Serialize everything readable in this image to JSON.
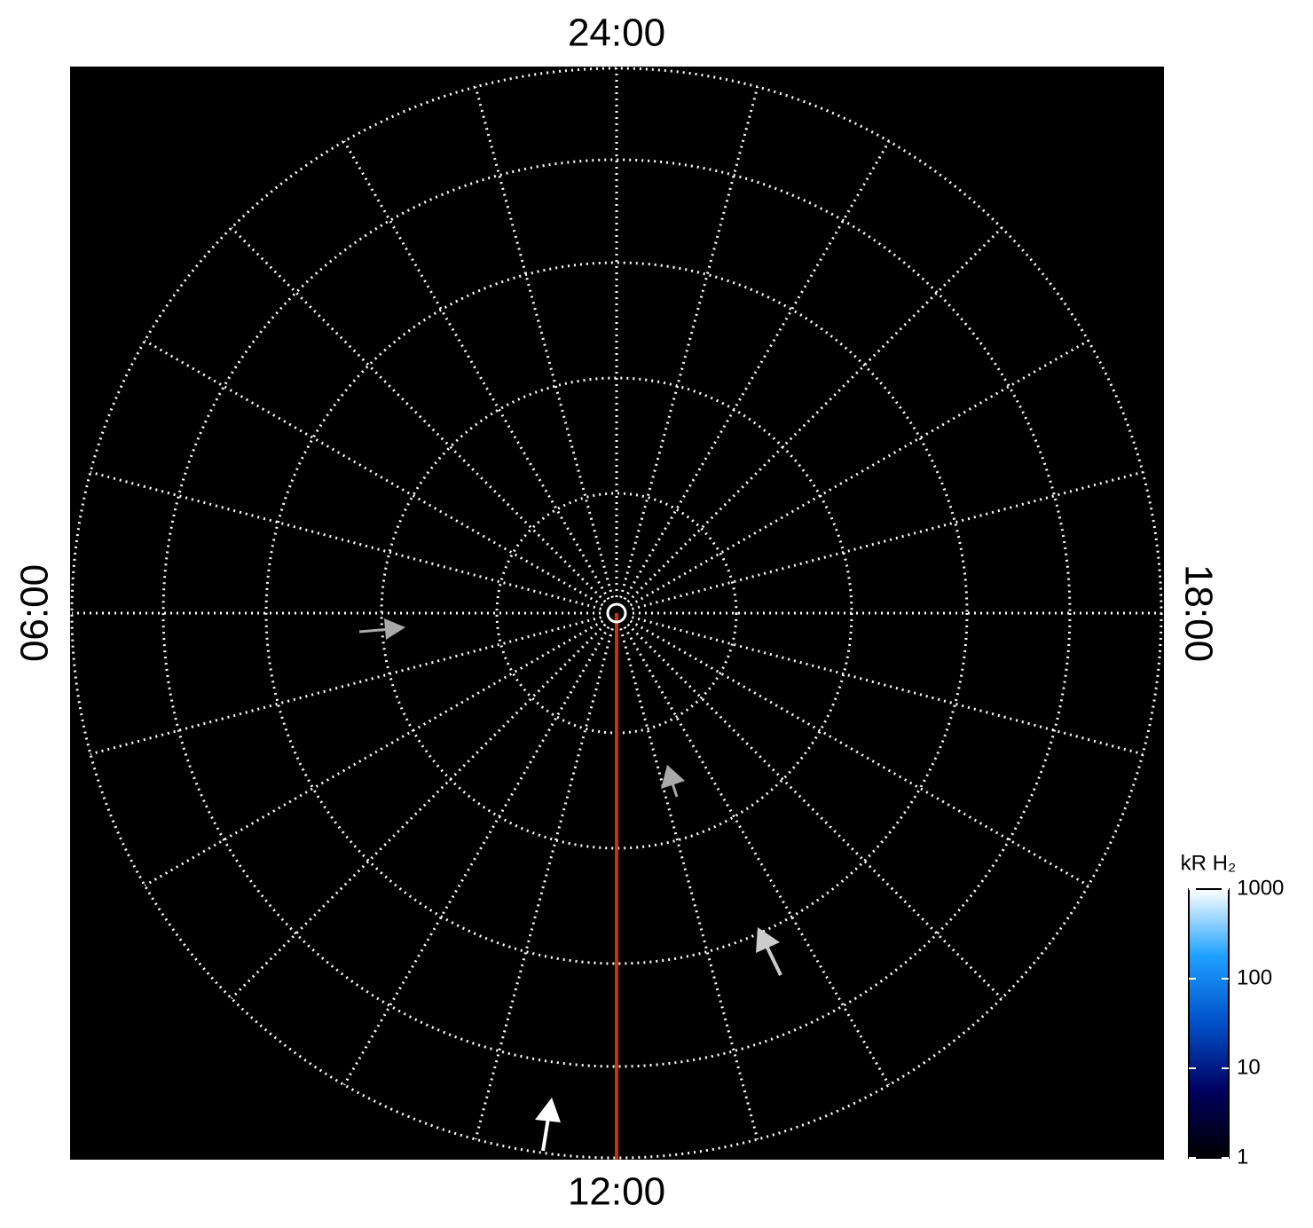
{
  "chart_data": {
    "type": "polar-map",
    "local_time_labels": {
      "top": "24:00",
      "left": "06:00",
      "right": "18:00",
      "bottom": "12:00"
    },
    "colorbar": {
      "label": "kR H₂",
      "lim": [
        1,
        1000
      ],
      "ticks": [
        1,
        10,
        100,
        1000
      ],
      "log": true,
      "colors": [
        "#000000",
        "#000060",
        "#0050c8",
        "#1ea0ff",
        "#ffffff"
      ]
    }
  }
}
